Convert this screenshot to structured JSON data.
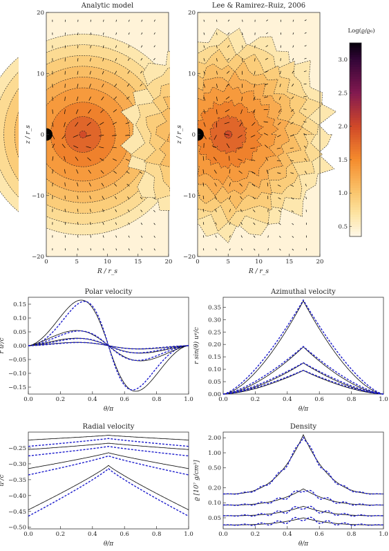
{
  "chart_data": [
    {
      "type": "heatmap",
      "title": "Analytic model",
      "xlabel": "R / r_s",
      "ylabel": "z / r_s",
      "xlim": [
        0,
        20
      ],
      "ylim": [
        -20,
        20
      ],
      "xticks": [
        "0",
        "5",
        "10",
        "15",
        "20"
      ],
      "yticks": [
        "20",
        "10",
        "0",
        "−10",
        "−20"
      ],
      "peak": [
        6,
        0
      ]
    },
    {
      "type": "heatmap",
      "title": "Lee & Ramirez–Ruiz, 2006",
      "xlabel": "R / r_s",
      "ylabel": "z / r_s",
      "xlim": [
        0,
        20
      ],
      "ylim": [
        -20,
        20
      ],
      "xticks": [
        "0",
        "5",
        "10",
        "15",
        "20"
      ],
      "yticks": [
        "20",
        "10",
        "0",
        "−10",
        "−20"
      ],
      "peak": [
        5,
        0
      ]
    },
    {
      "type": "colorbar",
      "title": "Log(ϱ/ϱ₀)",
      "range": [
        0.35,
        3.25
      ],
      "ticks": [
        "3.0",
        "2.5",
        "2.0",
        "1.5",
        "1.0",
        "0.5"
      ],
      "tick_values": [
        3.0,
        2.5,
        2.0,
        1.5,
        1.0,
        0.5
      ]
    },
    {
      "type": "line",
      "title": "Polar velocity",
      "xlabel": "θ/π",
      "ylabel": "r uᶠ/c",
      "xlim": [
        0,
        1
      ],
      "ylim": [
        -0.175,
        0.175
      ],
      "xticks": [
        "0.0",
        "0.2",
        "0.4",
        "0.6",
        "0.8",
        "1.0"
      ],
      "yticks": [
        "0.15",
        "0.10",
        "0.05",
        "0.00",
        "−0.05",
        "−0.10",
        "−0.15"
      ],
      "ytick_values": [
        0.15,
        0.1,
        0.05,
        0.0,
        -0.05,
        -0.1,
        -0.15
      ],
      "series": [
        {
          "amplitude": 0.165,
          "peak_x": 0.33
        },
        {
          "amplitude": 0.055,
          "peak_x": 0.3
        },
        {
          "amplitude": 0.027,
          "peak_x": 0.3
        },
        {
          "amplitude": 0.012,
          "peak_x": 0.3
        }
      ]
    },
    {
      "type": "line",
      "title": "Azimuthal velocity",
      "xlabel": "θ/π",
      "ylabel": "r sin(θ) uᵠ/c",
      "xlim": [
        0,
        1
      ],
      "ylim": [
        0,
        0.39
      ],
      "xticks": [
        "0.0",
        "0.2",
        "0.4",
        "0.6",
        "0.8",
        "1.0"
      ],
      "yticks": [
        "0.35",
        "0.30",
        "0.25",
        "0.20",
        "0.15",
        "0.10",
        "0.05",
        "0.00"
      ],
      "ytick_values": [
        0.35,
        0.3,
        0.25,
        0.2,
        0.15,
        0.1,
        0.05,
        0.0
      ],
      "series": [
        {
          "peak": 0.375
        },
        {
          "peak": 0.19
        },
        {
          "peak": 0.125
        },
        {
          "peak": 0.095
        }
      ]
    },
    {
      "type": "line",
      "title": "Radial velocity",
      "xlabel": "θ/π",
      "ylabel": "uʳ/c",
      "xlim": [
        0,
        1
      ],
      "ylim": [
        -0.505,
        -0.2
      ],
      "xticks": [
        "0.0",
        "0.2",
        "0.4",
        "0.6",
        "0.8",
        "1.0"
      ],
      "yticks": [
        "−0.25",
        "−0.30",
        "−0.35",
        "−0.40",
        "−0.45",
        "−0.50"
      ],
      "ytick_values": [
        -0.25,
        -0.3,
        -0.35,
        -0.4,
        -0.45,
        -0.5
      ],
      "series": [
        {
          "edge": -0.225,
          "center": -0.21
        },
        {
          "edge": -0.255,
          "center": -0.235
        },
        {
          "edge": -0.315,
          "center": -0.265
        },
        {
          "edge": -0.445,
          "center": -0.305
        }
      ]
    },
    {
      "type": "line",
      "title": "Density",
      "xlabel": "θ/π",
      "ylabel": "ϱ [10⁷ g/cm³]",
      "yscale": "log",
      "xlim": [
        0,
        1
      ],
      "ylim": [
        0.03,
        2.6
      ],
      "xticks": [
        "0.0",
        "0.2",
        "0.4",
        "0.6",
        "0.8",
        "1.0"
      ],
      "yticks": [
        "2.00",
        "1.00",
        "0.50",
        "0.20",
        "0.10",
        "0.05"
      ],
      "ytick_values": [
        2.0,
        1.0,
        0.5,
        0.2,
        0.1,
        0.05
      ],
      "series": [
        {
          "edge": 0.15,
          "center": 2.3
        },
        {
          "edge": 0.09,
          "center": 0.19
        },
        {
          "edge": 0.055,
          "center": 0.085
        },
        {
          "edge": 0.036,
          "center": 0.05
        }
      ]
    }
  ]
}
